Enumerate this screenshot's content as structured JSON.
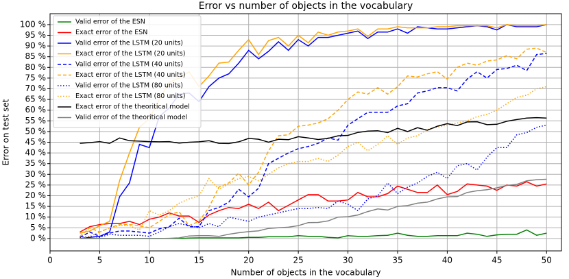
{
  "chart_data": {
    "type": "line",
    "title": "Error vs number of objects in the vocabulary",
    "x_label": "Number of objects in the vocabulary",
    "y_label": "Error on test set",
    "x": [
      3,
      4,
      5,
      6,
      7,
      8,
      9,
      10,
      11,
      12,
      13,
      14,
      15,
      16,
      17,
      18,
      19,
      20,
      21,
      22,
      23,
      24,
      25,
      26,
      27,
      28,
      29,
      30,
      31,
      32,
      33,
      34,
      35,
      36,
      37,
      38,
      39,
      40,
      41,
      42,
      43,
      44,
      45,
      46,
      47,
      48,
      49,
      50
    ],
    "series": [
      {
        "name": "Valid error of the ESN",
        "color": "#008000",
        "dash": "solid",
        "values": [
          0,
          0,
          0,
          0,
          0,
          0,
          0,
          0,
          0,
          0,
          0,
          0.2,
          0.3,
          0.3,
          0.3,
          0.3,
          0.3,
          0.5,
          0.5,
          0.8,
          0.8,
          0.8,
          1.3,
          1,
          1,
          0.5,
          0.3,
          1.3,
          1,
          1,
          1.3,
          1.5,
          2.5,
          1.5,
          1,
          1,
          1.3,
          1.3,
          1.3,
          2.5,
          2,
          1,
          1.7,
          2,
          2,
          4,
          1.5,
          2.5
        ]
      },
      {
        "name": "Exact error of the ESN",
        "color": "#ff0000",
        "dash": "solid",
        "values": [
          3,
          5.5,
          6.5,
          7,
          7,
          8,
          6.5,
          9,
          10,
          12,
          10.5,
          10.5,
          7.5,
          11,
          13,
          14.5,
          14,
          16,
          14,
          17,
          13,
          15.5,
          18,
          20.5,
          20.5,
          17.5,
          17.5,
          18,
          21.5,
          19.5,
          19.5,
          21,
          24.5,
          23,
          21.5,
          21.5,
          25,
          20.5,
          22,
          25.5,
          25,
          24.5,
          22.5,
          25,
          24.5,
          26.5,
          24.5,
          25.5
        ]
      },
      {
        "name": "Valid error of the LSTM (20 units)",
        "color": "#0000ff",
        "dash": "solid",
        "values": [
          0,
          0.5,
          1,
          3,
          19.5,
          26,
          44,
          42.5,
          57,
          61,
          67.5,
          68,
          64,
          71,
          75,
          77,
          82,
          88,
          84,
          87.5,
          92,
          88,
          93,
          90,
          94,
          94,
          95,
          96,
          97,
          93.5,
          96.5,
          96.5,
          98,
          96,
          99,
          98.5,
          98,
          98,
          98.5,
          99,
          99.5,
          99,
          97.5,
          100,
          99,
          99,
          99,
          100
        ]
      },
      {
        "name": "Exact error of the LSTM (20 units)",
        "color": "#ffa500",
        "dash": "solid",
        "values": [
          2.5,
          3.5,
          6,
          8,
          27,
          40,
          52,
          56,
          65,
          73,
          75,
          78,
          71,
          76,
          82,
          82.5,
          88,
          93,
          86,
          92.5,
          94,
          90,
          95,
          91.5,
          96.5,
          95,
          96.5,
          97,
          98,
          94.5,
          98,
          98,
          99,
          98.5,
          98.5,
          98.5,
          99,
          99,
          99.5,
          99.5,
          99.5,
          99.5,
          98.5,
          100,
          99.5,
          99.5,
          99.5,
          100
        ]
      },
      {
        "name": "Valid error of the LSTM (40 units)",
        "color": "#0000ff",
        "dash": "dashed",
        "values": [
          0.5,
          3,
          1,
          2.5,
          3.5,
          3.5,
          3,
          2.5,
          4.5,
          5.5,
          9.5,
          5.5,
          5.5,
          13,
          14.5,
          17,
          23,
          19.5,
          23.5,
          35,
          37.5,
          40,
          42,
          43,
          44.5,
          47,
          46,
          53,
          56,
          59,
          59,
          59,
          62,
          63,
          68,
          69,
          70.5,
          70.5,
          69,
          74.5,
          78,
          75,
          79,
          79.5,
          81,
          78.5,
          86,
          86.5
        ]
      },
      {
        "name": "Exact error of the LSTM (40 units)",
        "color": "#ffa500",
        "dash": "dashed",
        "values": [
          1,
          5,
          3,
          5,
          6.5,
          6.5,
          6,
          5,
          8,
          11,
          12.5,
          6,
          8,
          14.5,
          24,
          26,
          30.5,
          25,
          31,
          41,
          48,
          48.5,
          52.5,
          53,
          54,
          56,
          60,
          65,
          68.5,
          67.5,
          70.5,
          67.5,
          71,
          76,
          75.5,
          77,
          78,
          74.5,
          80,
          82,
          81,
          83,
          83.5,
          85.5,
          84,
          88.5,
          89,
          87
        ]
      },
      {
        "name": "Valid error of the LSTM (80 units)",
        "color": "#0000ff",
        "dash": "dotted",
        "values": [
          0.5,
          1,
          0.5,
          2,
          1.5,
          1.5,
          1.5,
          1,
          3,
          5.5,
          7,
          6,
          5,
          7,
          5.5,
          10,
          9,
          8,
          10,
          11,
          12,
          13,
          14,
          14,
          14.5,
          14,
          17.5,
          16,
          13,
          18.5,
          20,
          26,
          21,
          24,
          26,
          29,
          31,
          28,
          34,
          35,
          32,
          38,
          42.5,
          42.5,
          48.5,
          49.5,
          52,
          53
        ]
      },
      {
        "name": "Exact error of the LSTM (80 units)",
        "color": "#ffa500",
        "dash": "dotted",
        "values": [
          0,
          1,
          3,
          5,
          6,
          6,
          4,
          13,
          11,
          13,
          16.5,
          18.5,
          20,
          28,
          23,
          25.5,
          28,
          29,
          27,
          30,
          33,
          35,
          36,
          36,
          37.5,
          36,
          39,
          43,
          45,
          41,
          44,
          48,
          44,
          47,
          48,
          51,
          52,
          53,
          54,
          55,
          57,
          58,
          60,
          63,
          66,
          67,
          70,
          71
        ]
      },
      {
        "name": "Exact error of the theoritical model",
        "color": "#000000",
        "dash": "solid",
        "values": [
          44.5,
          44.8,
          45.3,
          44.5,
          47,
          45.7,
          45.5,
          45.3,
          45.2,
          45.3,
          44.6,
          45,
          45.2,
          45.7,
          44.5,
          44.4,
          45.2,
          46.8,
          46.4,
          45,
          46.4,
          46.2,
          47.6,
          47,
          46.3,
          46.8,
          48,
          48.2,
          49.6,
          50.2,
          50.4,
          49.5,
          51.5,
          50,
          51.8,
          50.6,
          52.5,
          53.7,
          52.8,
          54.5,
          54.6,
          53.2,
          53.4,
          54.8,
          55.6,
          56.3,
          56.5,
          56.3
        ]
      },
      {
        "name": "Valid error of the theoritical model",
        "color": "#808080",
        "dash": "solid",
        "values": [
          0,
          0,
          0,
          0,
          0,
          0,
          0,
          0,
          0,
          0.1,
          0.3,
          1.2,
          1.3,
          1.3,
          1,
          2,
          2.7,
          3.2,
          3.6,
          4.7,
          5,
          5.3,
          6,
          7.4,
          7.5,
          8.2,
          10,
          10.2,
          11,
          12.6,
          13.8,
          13.3,
          15,
          15.4,
          16.5,
          17,
          18.5,
          19.5,
          19.6,
          21.5,
          22.3,
          22.8,
          23.7,
          24.8,
          25.3,
          27,
          27.5,
          27.7
        ]
      }
    ],
    "xlim": [
      0,
      51.5
    ],
    "ylim": [
      -5.8,
      105.1
    ],
    "xticks": [
      0,
      5,
      10,
      15,
      20,
      25,
      30,
      35,
      40,
      45,
      50
    ],
    "yticks": [
      {
        "value": 0,
        "label": "0 %"
      },
      {
        "value": 5,
        "label": "5 %"
      },
      {
        "value": 10,
        "label": "10 %"
      },
      {
        "value": 15,
        "label": "15 %"
      },
      {
        "value": 20,
        "label": "20 %"
      },
      {
        "value": 25,
        "label": "25 %"
      },
      {
        "value": 30,
        "label": "30 %"
      },
      {
        "value": 35,
        "label": "35 %"
      },
      {
        "value": 40,
        "label": "40 %"
      },
      {
        "value": 45,
        "label": "45 %"
      },
      {
        "value": 50,
        "label": "50 %"
      },
      {
        "value": 55,
        "label": "55 %"
      },
      {
        "value": 60,
        "label": "60 %"
      },
      {
        "value": 65,
        "label": "65 %"
      },
      {
        "value": 70,
        "label": "70 %"
      },
      {
        "value": 75,
        "label": "75 %"
      },
      {
        "value": 80,
        "label": "80 %"
      },
      {
        "value": 85,
        "label": "85 %"
      },
      {
        "value": 90,
        "label": "90 %"
      },
      {
        "value": 95,
        "label": "95 %"
      },
      {
        "value": 100,
        "label": "100 %"
      }
    ],
    "grid": true,
    "legend": "upper left"
  }
}
